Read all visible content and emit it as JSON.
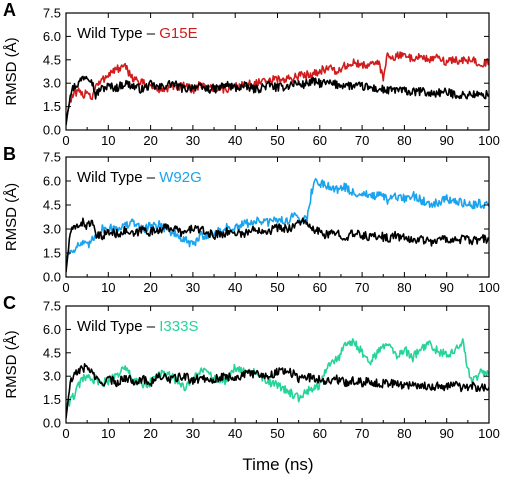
{
  "xlabel": "Time (ns)",
  "colors": {
    "wild_type": "#000000",
    "G15E": "#d01c1c",
    "W92G": "#1aa3ee",
    "I333S": "#26d39a"
  },
  "chart_data": [
    {
      "type": "line",
      "panel": "A",
      "ylabel": "RMSD (Å)",
      "xlim": [
        0,
        100
      ],
      "ylim": [
        0,
        7.5
      ],
      "x_ticks": [
        0,
        10,
        20,
        30,
        40,
        50,
        60,
        70,
        80,
        90,
        100
      ],
      "y_ticks": [
        "0.0",
        "1.5",
        "3.0",
        "4.5",
        "6.0",
        "7.5"
      ],
      "legend": {
        "prefix": "Wild Type –",
        "mutant": "G15E"
      },
      "x": [
        0,
        1,
        2,
        3,
        4,
        5,
        6,
        7,
        8,
        10,
        12,
        14,
        16,
        18,
        20,
        22,
        25,
        28,
        30,
        32,
        35,
        38,
        40,
        42,
        45,
        48,
        50,
        52,
        54,
        56,
        58,
        60,
        62,
        64,
        66,
        68,
        70,
        72,
        74,
        75,
        76,
        78,
        80,
        82,
        84,
        86,
        88,
        90,
        92,
        94,
        96,
        98,
        100
      ],
      "series": [
        {
          "name": "Wild Type",
          "color": "#000000",
          "values": [
            0.3,
            2.4,
            2.8,
            3.0,
            3.4,
            3.5,
            3.3,
            2.2,
            2.6,
            2.8,
            2.7,
            3.0,
            2.8,
            2.6,
            2.9,
            2.7,
            3.0,
            2.6,
            2.8,
            2.7,
            2.6,
            2.9,
            2.7,
            2.8,
            2.6,
            2.9,
            2.7,
            2.8,
            3.0,
            2.9,
            3.1,
            3.0,
            3.0,
            2.9,
            2.9,
            2.8,
            2.8,
            2.7,
            2.6,
            2.6,
            2.5,
            2.6,
            2.5,
            2.4,
            2.5,
            2.3,
            2.4,
            2.4,
            2.3,
            2.2,
            2.3,
            2.2,
            2.3
          ]
        },
        {
          "name": "G15E",
          "color": "#d01c1c",
          "values": [
            0.6,
            1.9,
            2.3,
            2.4,
            2.2,
            2.6,
            2.0,
            2.8,
            3.0,
            3.6,
            3.9,
            4.0,
            3.3,
            3.0,
            2.8,
            2.6,
            2.7,
            2.8,
            2.6,
            2.9,
            2.7,
            2.6,
            2.8,
            2.9,
            3.0,
            3.1,
            3.3,
            3.2,
            3.4,
            3.5,
            3.6,
            3.8,
            4.0,
            3.7,
            4.1,
            4.3,
            4.1,
            4.3,
            4.2,
            3.4,
            4.8,
            4.7,
            4.8,
            4.6,
            4.7,
            4.5,
            4.6,
            4.4,
            4.5,
            4.4,
            4.5,
            4.3,
            4.3
          ]
        }
      ]
    },
    {
      "type": "line",
      "panel": "B",
      "ylabel": "RMSD (Å)",
      "xlim": [
        0,
        100
      ],
      "ylim": [
        0,
        7.5
      ],
      "x_ticks": [
        0,
        10,
        20,
        30,
        40,
        50,
        60,
        70,
        80,
        90,
        100
      ],
      "y_ticks": [
        "0.0",
        "1.5",
        "3.0",
        "4.5",
        "6.0",
        "7.5"
      ],
      "legend": {
        "prefix": "Wild Type –",
        "mutant": "W92G"
      },
      "x": [
        0,
        1,
        2,
        3,
        4,
        5,
        6,
        7,
        8,
        10,
        12,
        14,
        16,
        18,
        20,
        22,
        25,
        28,
        30,
        32,
        35,
        38,
        40,
        42,
        45,
        48,
        50,
        52,
        54,
        56,
        57,
        58,
        59,
        60,
        62,
        64,
        66,
        68,
        70,
        72,
        74,
        76,
        78,
        80,
        82,
        84,
        86,
        88,
        90,
        92,
        94,
        96,
        98,
        100
      ],
      "series": [
        {
          "name": "Wild Type",
          "color": "#000000",
          "values": [
            0.3,
            2.8,
            3.0,
            3.3,
            3.4,
            3.2,
            3.5,
            2.6,
            2.5,
            2.8,
            2.7,
            2.9,
            2.6,
            3.0,
            2.8,
            3.0,
            3.1,
            2.7,
            3.1,
            2.9,
            2.6,
            2.8,
            2.8,
            2.7,
            3.0,
            2.9,
            3.1,
            3.0,
            3.2,
            3.6,
            3.2,
            3.0,
            2.9,
            2.8,
            2.6,
            2.8,
            2.5,
            2.7,
            2.6,
            2.5,
            2.6,
            2.4,
            2.6,
            2.4,
            2.3,
            2.4,
            2.2,
            2.3,
            2.4,
            2.3,
            2.4,
            2.2,
            2.4,
            2.3
          ]
        },
        {
          "name": "W92G",
          "color": "#1aa3ee",
          "values": [
            1.2,
            1.6,
            1.8,
            2.0,
            2.1,
            1.9,
            2.2,
            2.6,
            3.0,
            3.0,
            3.1,
            3.2,
            3.4,
            3.0,
            3.2,
            3.3,
            2.8,
            2.3,
            2.0,
            2.6,
            2.7,
            3.1,
            3.0,
            3.3,
            3.5,
            3.4,
            3.6,
            3.5,
            3.8,
            3.7,
            3.6,
            5.3,
            6.0,
            5.9,
            5.7,
            5.5,
            5.6,
            5.2,
            5.3,
            5.0,
            5.1,
            4.8,
            5.0,
            4.9,
            5.1,
            4.8,
            4.6,
            4.7,
            4.9,
            4.7,
            4.6,
            4.5,
            4.6,
            4.4
          ]
        }
      ]
    },
    {
      "type": "line",
      "panel": "C",
      "ylabel": "RMSD (Å)",
      "xlim": [
        0,
        100
      ],
      "ylim": [
        0,
        7.5
      ],
      "x_ticks": [
        0,
        10,
        20,
        30,
        40,
        50,
        60,
        70,
        80,
        90,
        100
      ],
      "y_ticks": [
        "0.0",
        "1.5",
        "3.0",
        "4.5",
        "6.0",
        "7.5"
      ],
      "legend": {
        "prefix": "Wild Type –",
        "mutant": "I333S"
      },
      "x": [
        0,
        1,
        2,
        3,
        4,
        5,
        6,
        7,
        8,
        10,
        12,
        14,
        16,
        18,
        20,
        22,
        25,
        28,
        30,
        32,
        35,
        38,
        40,
        42,
        45,
        48,
        50,
        52,
        54,
        55,
        56,
        58,
        60,
        62,
        64,
        66,
        68,
        70,
        72,
        74,
        76,
        78,
        80,
        82,
        84,
        86,
        88,
        90,
        92,
        94,
        95,
        96,
        97,
        98,
        100
      ],
      "series": [
        {
          "name": "Wild Type",
          "color": "#000000",
          "values": [
            0.3,
            2.6,
            3.0,
            3.4,
            3.5,
            3.6,
            3.3,
            2.9,
            2.5,
            2.8,
            2.6,
            2.9,
            2.7,
            2.8,
            2.6,
            3.0,
            2.8,
            3.0,
            2.7,
            2.9,
            2.8,
            3.0,
            2.9,
            3.1,
            3.2,
            3.0,
            3.3,
            3.4,
            3.1,
            2.8,
            3.0,
            2.9,
            2.8,
            2.7,
            2.8,
            2.6,
            2.7,
            2.6,
            2.7,
            2.5,
            2.6,
            2.5,
            2.4,
            2.5,
            2.4,
            2.3,
            2.4,
            2.3,
            2.5,
            2.2,
            2.3,
            2.4,
            2.2,
            2.3,
            2.3
          ]
        },
        {
          "name": "I333S",
          "color": "#26d39a",
          "values": [
            1.2,
            1.4,
            1.8,
            2.4,
            2.8,
            3.0,
            2.6,
            2.9,
            2.5,
            2.7,
            3.1,
            3.5,
            2.8,
            2.4,
            2.6,
            3.2,
            3.0,
            2.2,
            2.8,
            3.4,
            2.9,
            2.6,
            3.6,
            3.4,
            3.2,
            2.6,
            2.4,
            2.1,
            1.8,
            1.6,
            1.9,
            2.2,
            2.4,
            3.8,
            4.0,
            4.9,
            5.3,
            4.5,
            4.0,
            4.6,
            5.1,
            4.3,
            4.7,
            4.2,
            4.8,
            5.0,
            4.6,
            4.4,
            4.7,
            5.2,
            3.4,
            2.7,
            2.8,
            3.2,
            3.3
          ]
        }
      ]
    }
  ]
}
